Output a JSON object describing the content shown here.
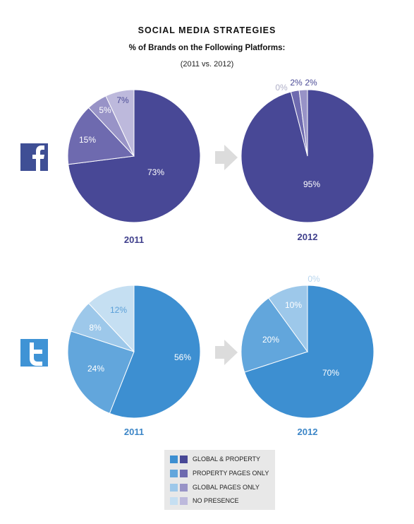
{
  "header": {
    "title": "SOCIAL MEDIA STRATEGIES",
    "subtitle": "% of Brands on the Following Platforms:",
    "years": "(2011 vs. 2012)"
  },
  "icons": {
    "facebook": "facebook-icon",
    "twitter": "twitter-icon",
    "arrow": "right-arrow-icon",
    "facebook_glyph": "f",
    "twitter_glyph": "t"
  },
  "legend": {
    "items": [
      {
        "label": "GLOBAL & PROPERTY",
        "twitter_color": "#3d8fd1",
        "facebook_color": "#484896"
      },
      {
        "label": "PROPERTY PAGES ONLY",
        "twitter_color": "#62a6dc",
        "facebook_color": "#6e6aaf"
      },
      {
        "label": "GLOBAL PAGES ONLY",
        "twitter_color": "#9dc8ea",
        "facebook_color": "#9893c7"
      },
      {
        "label": "NO PRESENCE",
        "twitter_color": "#c5dff2",
        "facebook_color": "#bdb9dc"
      }
    ]
  },
  "chart_data": [
    {
      "type": "pie",
      "platform": "Facebook",
      "year": "2011",
      "categories": [
        "GLOBAL & PROPERTY",
        "PROPERTY PAGES ONLY",
        "GLOBAL PAGES ONLY",
        "NO PRESENCE"
      ],
      "values": [
        73,
        15,
        5,
        7
      ],
      "labels": [
        "73%",
        "15%",
        "5%",
        "7%"
      ],
      "colors": [
        "#484896",
        "#6e6aaf",
        "#9893c7",
        "#bdb9dc"
      ]
    },
    {
      "type": "pie",
      "platform": "Facebook",
      "year": "2012",
      "categories": [
        "GLOBAL & PROPERTY",
        "PROPERTY PAGES ONLY",
        "GLOBAL PAGES ONLY",
        "NO PRESENCE"
      ],
      "values": [
        95,
        2,
        2,
        0
      ],
      "labels": [
        "95%",
        "2%",
        "2%",
        "0%"
      ],
      "colors": [
        "#484896",
        "#6e6aaf",
        "#9893c7",
        "#bdb9dc"
      ]
    },
    {
      "type": "pie",
      "platform": "Twitter",
      "year": "2011",
      "categories": [
        "GLOBAL & PROPERTY",
        "PROPERTY PAGES ONLY",
        "GLOBAL PAGES ONLY",
        "NO PRESENCE"
      ],
      "values": [
        56,
        24,
        8,
        12
      ],
      "labels": [
        "56%",
        "24%",
        "8%",
        "12%"
      ],
      "colors": [
        "#3d8fd1",
        "#62a6dc",
        "#9dc8ea",
        "#c5dff2"
      ]
    },
    {
      "type": "pie",
      "platform": "Twitter",
      "year": "2012",
      "categories": [
        "GLOBAL & PROPERTY",
        "PROPERTY PAGES ONLY",
        "GLOBAL PAGES ONLY",
        "NO PRESENCE"
      ],
      "values": [
        70,
        20,
        10,
        0
      ],
      "labels": [
        "70%",
        "20%",
        "10%",
        "0%"
      ],
      "colors": [
        "#3d8fd1",
        "#62a6dc",
        "#9dc8ea",
        "#c5dff2"
      ]
    }
  ]
}
